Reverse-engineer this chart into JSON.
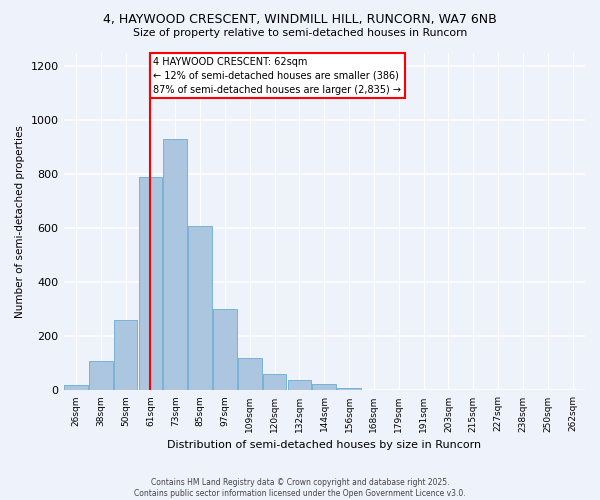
{
  "title1": "4, HAYWOOD CRESCENT, WINDMILL HILL, RUNCORN, WA7 6NB",
  "title2": "Size of property relative to semi-detached houses in Runcorn",
  "xlabel": "Distribution of semi-detached houses by size in Runcorn",
  "ylabel": "Number of semi-detached properties",
  "categories": [
    "26sqm",
    "38sqm",
    "50sqm",
    "61sqm",
    "73sqm",
    "85sqm",
    "97sqm",
    "109sqm",
    "120sqm",
    "132sqm",
    "144sqm",
    "156sqm",
    "168sqm",
    "179sqm",
    "191sqm",
    "203sqm",
    "215sqm",
    "227sqm",
    "238sqm",
    "250sqm",
    "262sqm"
  ],
  "values": [
    20,
    110,
    260,
    790,
    930,
    610,
    300,
    120,
    60,
    40,
    25,
    10,
    3,
    1,
    1,
    0,
    0,
    0,
    0,
    0,
    0
  ],
  "bar_color": "#adc6e0",
  "bar_edge_color": "#6aaad4",
  "background_color": "#eef2fb",
  "grid_color": "#ffffff",
  "red_line_index": 3,
  "annotation_title": "4 HAYWOOD CRESCENT: 62sqm",
  "annotation_line1": "← 12% of semi-detached houses are smaller (386)",
  "annotation_line2": "87% of semi-detached houses are larger (2,835) →",
  "footer1": "Contains HM Land Registry data © Crown copyright and database right 2025.",
  "footer2": "Contains public sector information licensed under the Open Government Licence v3.0.",
  "ylim": [
    0,
    1250
  ],
  "yticks": [
    0,
    200,
    400,
    600,
    800,
    1000,
    1200
  ]
}
